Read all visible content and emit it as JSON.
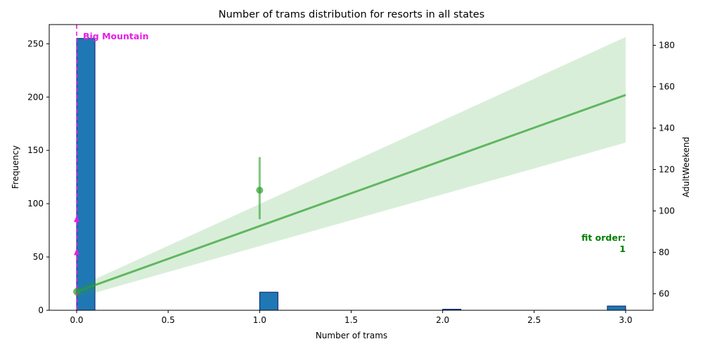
{
  "chart_data": {
    "type": "bar",
    "title": "Number of trams distribution for resorts in all states",
    "xlabel": "Number of trams",
    "ylabel": "Frequency",
    "y2label": "AdultWeekend",
    "xlim": [
      -0.15,
      3.15
    ],
    "ylim": [
      0,
      268
    ],
    "y2lim": [
      52,
      190
    ],
    "xticks": [
      0,
      0.5,
      1,
      1.5,
      2,
      2.5,
      3
    ],
    "xtick_labels": [
      "0.0",
      "0.5",
      "1.0",
      "1.5",
      "2.0",
      "2.5",
      "3.0"
    ],
    "yticks": [
      0,
      50,
      100,
      150,
      200,
      250
    ],
    "ytick_labels": [
      "0",
      "50",
      "100",
      "150",
      "200",
      "250"
    ],
    "y2ticks": [
      60,
      80,
      100,
      120,
      140,
      160,
      180
    ],
    "y2tick_labels": [
      "60",
      "80",
      "100",
      "120",
      "140",
      "160",
      "180"
    ],
    "histogram": {
      "bin_width": 0.1,
      "bins": [
        {
          "x0": 0.0,
          "count": 255
        },
        {
          "x0": 1.0,
          "count": 17
        },
        {
          "x0": 2.0,
          "count": 1
        },
        {
          "x0": 2.9,
          "count": 4
        }
      ],
      "color": "#1f77b4",
      "edge_color": "#0a1f6e"
    },
    "regression": {
      "color": "#2ca02c",
      "fit_line": [
        [
          0,
          61
        ],
        [
          3,
          156
        ]
      ],
      "ci_band": {
        "x": [
          0,
          3
        ],
        "lower": [
          58,
          133
        ],
        "upper": [
          63,
          184
        ]
      },
      "points": [
        {
          "x": 0,
          "y": 61,
          "err": [
            59,
            63
          ]
        },
        {
          "x": 1,
          "y": 110,
          "err": [
            96,
            126
          ]
        }
      ]
    },
    "marker_line": {
      "x": 0,
      "label": "Big Mountain",
      "color": "#e61ee6",
      "arrows_y2": [
        96,
        80
      ]
    },
    "fit_annotation": {
      "lines": [
        "fit order:",
        "1"
      ],
      "color": "#008000"
    }
  }
}
